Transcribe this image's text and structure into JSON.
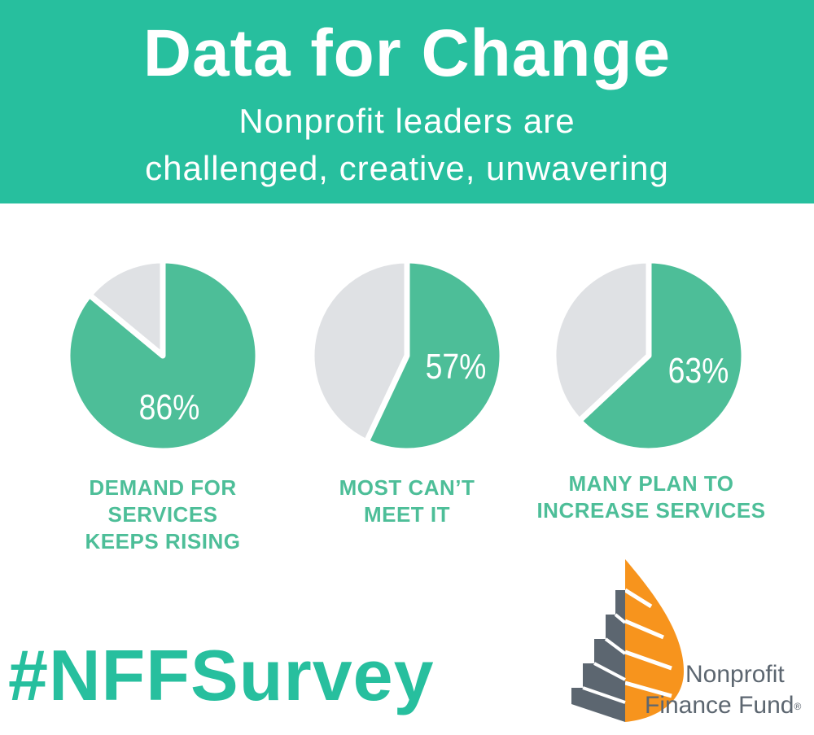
{
  "header": {
    "title": "Data for Change",
    "subtitle_line1": "Nonprofit leaders are",
    "subtitle_line2": "challenged, creative, unwavering"
  },
  "colors": {
    "banner": "#27bf9e",
    "pie_filled": "#4dbe98",
    "pie_empty": "#dfe1e4",
    "caption": "#4dbe98",
    "logo_gray": "#5c6670",
    "logo_orange": "#f7941d"
  },
  "chart_data": [
    {
      "type": "pie",
      "label": "86%",
      "values": [
        86,
        14
      ],
      "caption_lines": [
        "DEMAND FOR",
        "SERVICES",
        "KEEPS RISING"
      ]
    },
    {
      "type": "pie",
      "label": "57%",
      "values": [
        57,
        43
      ],
      "caption_lines": [
        "MOST CAN’T",
        "MEET IT"
      ]
    },
    {
      "type": "pie",
      "label": "63%",
      "values": [
        63,
        37
      ],
      "caption_lines": [
        "MANY PLAN TO",
        "INCREASE SERVICES"
      ]
    }
  ],
  "footer": {
    "hashtag": "#NFFSurvey",
    "logo_line1": "Nonprofit",
    "logo_line2": "Finance Fund",
    "logo_mark": "®",
    "logo_icon": "leaf-steps-icon"
  }
}
